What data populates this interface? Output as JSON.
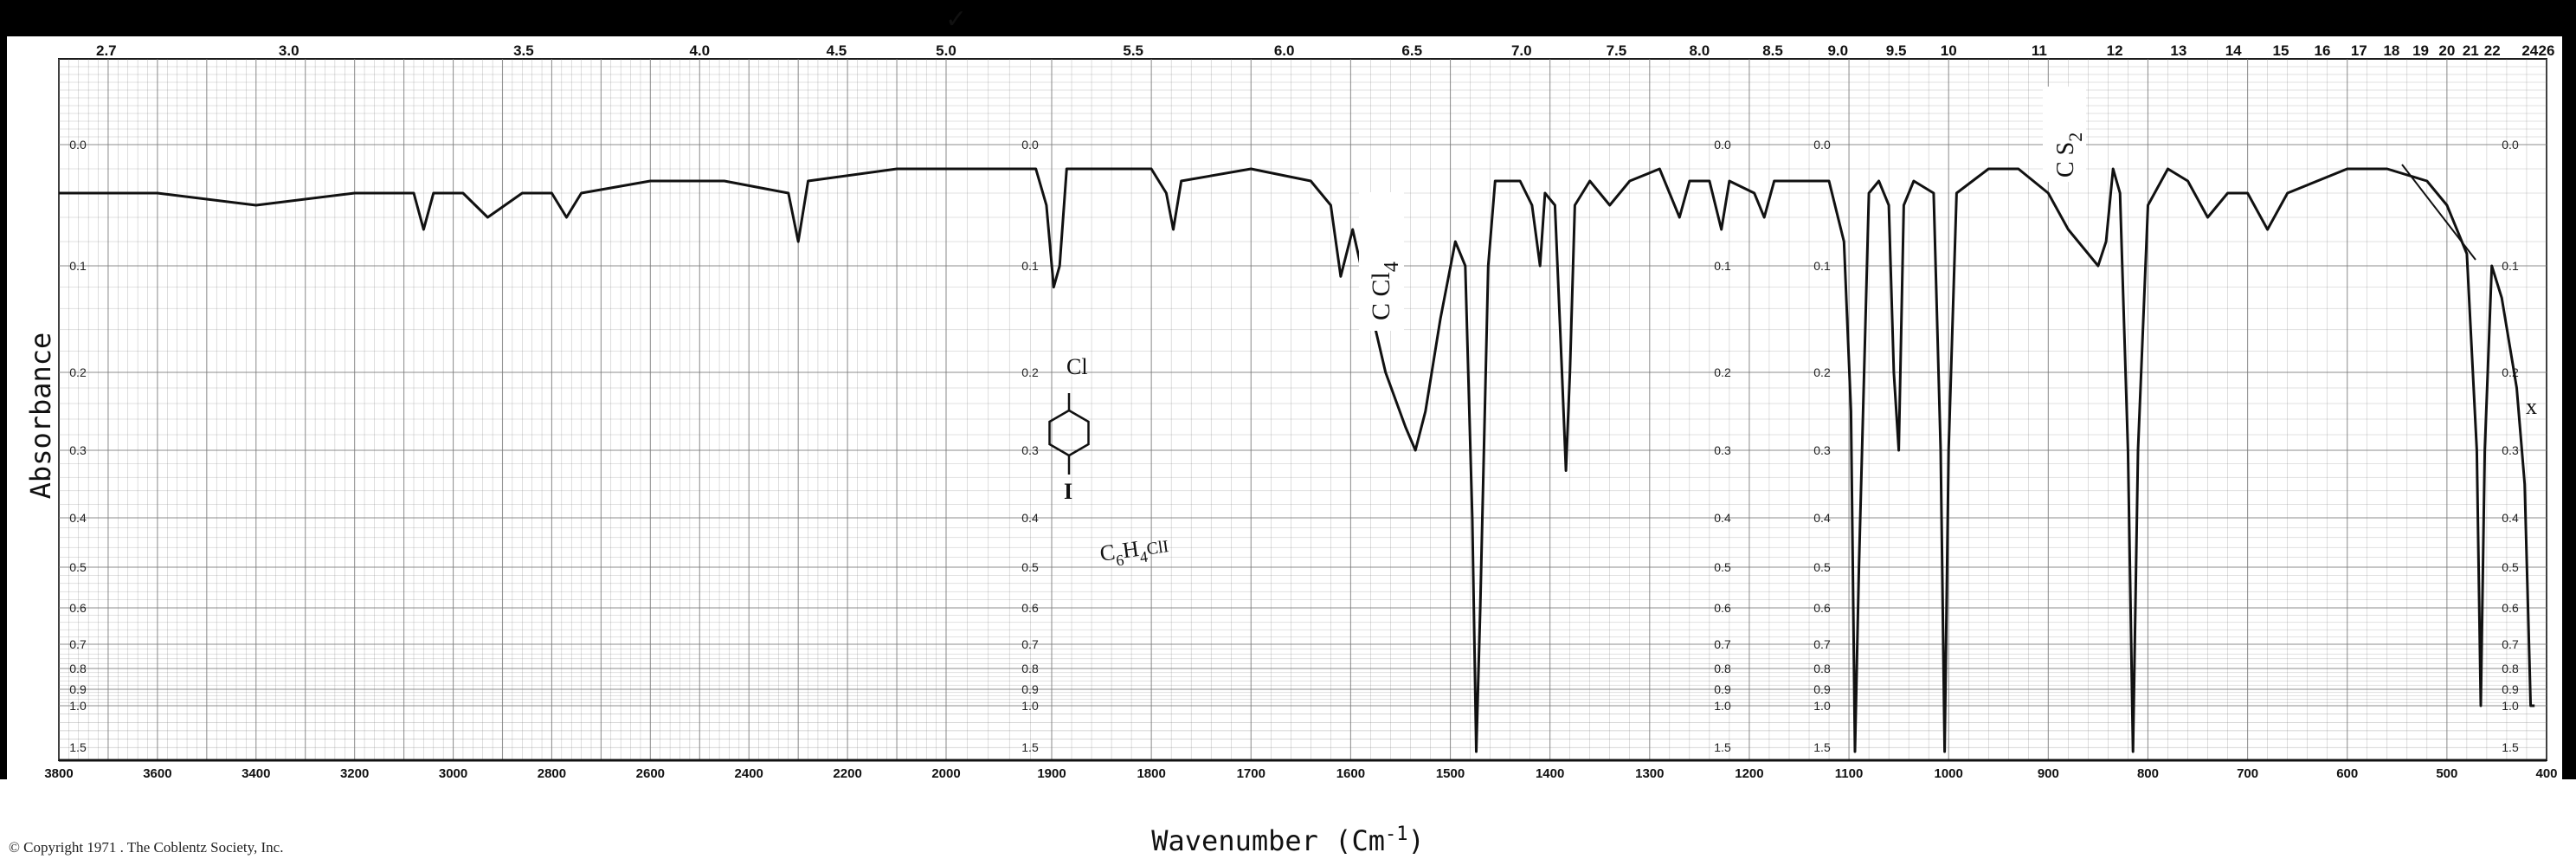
{
  "chart_data": {
    "type": "line",
    "ylabel": "Absorbance",
    "xlabel": "Wavenumber (Cm",
    "xlabel_sup": "-1",
    "x_wavenumber_ticks": [
      "3800",
      "3600",
      "3400",
      "3200",
      "3000",
      "2800",
      "2600",
      "2400",
      "2200",
      "2000",
      "1900",
      "1800",
      "1700",
      "1600",
      "1500",
      "1400",
      "1300",
      "1200",
      "1100",
      "1000",
      "900",
      "800",
      "700",
      "600",
      "500",
      "400"
    ],
    "x_wavelength_ticks": [
      "2.7",
      "3.0",
      "3.5",
      "4.0",
      "4.5",
      "5.0",
      "5.5",
      "6.0",
      "6.5",
      "7.0",
      "7.5",
      "8.0",
      "8.5",
      "9.0",
      "9.5",
      "10",
      "11",
      "12",
      "13",
      "14",
      "15",
      "16",
      "17",
      "18",
      "19",
      "20",
      "21",
      "22",
      "24",
      "26"
    ],
    "absorbance_ticks": [
      "0.0",
      "0.1",
      "0.2",
      "0.3",
      "0.4",
      "0.5",
      "0.6",
      "0.7",
      "0.8",
      "0.9",
      "1.0",
      "1.5"
    ],
    "grid": true,
    "series": [
      {
        "points": [
          [
            3800,
            0.04
          ],
          [
            3600,
            0.04
          ],
          [
            3400,
            0.05
          ],
          [
            3200,
            0.04
          ],
          [
            3080,
            0.04
          ],
          [
            3060,
            0.07
          ],
          [
            3040,
            0.04
          ],
          [
            2980,
            0.04
          ],
          [
            2930,
            0.06
          ],
          [
            2860,
            0.04
          ],
          [
            2800,
            0.04
          ],
          [
            2770,
            0.06
          ],
          [
            2740,
            0.04
          ],
          [
            2600,
            0.03
          ],
          [
            2450,
            0.03
          ],
          [
            2320,
            0.04
          ],
          [
            2300,
            0.08
          ],
          [
            2280,
            0.03
          ],
          [
            2100,
            0.02
          ],
          [
            2000,
            0.02
          ],
          [
            1950,
            0.02
          ],
          [
            1915,
            0.02
          ],
          [
            1905,
            0.05
          ],
          [
            1898,
            0.12
          ],
          [
            1892,
            0.1
          ],
          [
            1885,
            0.02
          ],
          [
            1800,
            0.02
          ],
          [
            1785,
            0.04
          ],
          [
            1778,
            0.07
          ],
          [
            1770,
            0.03
          ],
          [
            1700,
            0.02
          ],
          [
            1640,
            0.03
          ],
          [
            1620,
            0.05
          ],
          [
            1610,
            0.11
          ],
          [
            1598,
            0.07
          ],
          [
            1585,
            0.12
          ],
          [
            1565,
            0.2
          ],
          [
            1545,
            0.27
          ],
          [
            1535,
            0.3
          ],
          [
            1525,
            0.25
          ],
          [
            1510,
            0.15
          ],
          [
            1495,
            0.08
          ],
          [
            1485,
            0.1
          ],
          [
            1478,
            0.4
          ],
          [
            1474,
            1.55
          ],
          [
            1470,
            0.6
          ],
          [
            1462,
            0.1
          ],
          [
            1455,
            0.03
          ],
          [
            1430,
            0.03
          ],
          [
            1418,
            0.05
          ],
          [
            1410,
            0.1
          ],
          [
            1405,
            0.04
          ],
          [
            1395,
            0.05
          ],
          [
            1388,
            0.2
          ],
          [
            1384,
            0.33
          ],
          [
            1380,
            0.2
          ],
          [
            1375,
            0.05
          ],
          [
            1360,
            0.03
          ],
          [
            1340,
            0.05
          ],
          [
            1320,
            0.03
          ],
          [
            1290,
            0.02
          ],
          [
            1270,
            0.06
          ],
          [
            1260,
            0.03
          ],
          [
            1240,
            0.03
          ],
          [
            1228,
            0.07
          ],
          [
            1220,
            0.03
          ],
          [
            1195,
            0.04
          ],
          [
            1185,
            0.06
          ],
          [
            1175,
            0.03
          ],
          [
            1120,
            0.03
          ],
          [
            1105,
            0.08
          ],
          [
            1098,
            0.25
          ],
          [
            1094,
            1.55
          ],
          [
            1090,
            0.5
          ],
          [
            1080,
            0.04
          ],
          [
            1070,
            0.03
          ],
          [
            1060,
            0.05
          ],
          [
            1055,
            0.2
          ],
          [
            1050,
            0.3
          ],
          [
            1045,
            0.05
          ],
          [
            1035,
            0.03
          ],
          [
            1015,
            0.04
          ],
          [
            1008,
            0.3
          ],
          [
            1004,
            1.55
          ],
          [
            1000,
            0.3
          ],
          [
            992,
            0.04
          ],
          [
            960,
            0.02
          ],
          [
            930,
            0.02
          ],
          [
            900,
            0.04
          ],
          [
            880,
            0.07
          ],
          [
            860,
            0.09
          ],
          [
            850,
            0.1
          ],
          [
            842,
            0.08
          ],
          [
            835,
            0.02
          ],
          [
            828,
            0.04
          ],
          [
            820,
            0.3
          ],
          [
            815,
            1.55
          ],
          [
            810,
            0.3
          ],
          [
            800,
            0.05
          ],
          [
            780,
            0.02
          ],
          [
            760,
            0.03
          ],
          [
            740,
            0.06
          ],
          [
            720,
            0.04
          ],
          [
            700,
            0.04
          ],
          [
            680,
            0.07
          ],
          [
            660,
            0.04
          ],
          [
            600,
            0.02
          ],
          [
            560,
            0.02
          ],
          [
            520,
            0.03
          ],
          [
            500,
            0.05
          ],
          [
            480,
            0.09
          ],
          [
            470,
            0.3
          ],
          [
            466,
            1.0
          ],
          [
            462,
            0.3
          ],
          [
            455,
            0.1
          ],
          [
            445,
            0.13
          ],
          [
            430,
            0.22
          ],
          [
            422,
            0.35
          ],
          [
            416,
            1.0
          ],
          [
            412,
            1.0
          ]
        ]
      }
    ],
    "annotations": {
      "ccl4": "C Cl",
      "ccl4_sub": "4",
      "cs2": "C S",
      "cs2_sub": "2",
      "formula": "C",
      "formula_sub1": "6",
      "formula_mid": "H",
      "formula_sub2": "4",
      "formula_end": "ClI",
      "cl": "Cl",
      "iodine": "I",
      "x_mark": "x",
      "check_mark": "✓"
    },
    "copyright": "© Copyright 1971 . The Coblentz Society, Inc."
  },
  "colors": {
    "grid": "#7a7a7a",
    "ink": "#111111",
    "paper": "#ffffff"
  }
}
